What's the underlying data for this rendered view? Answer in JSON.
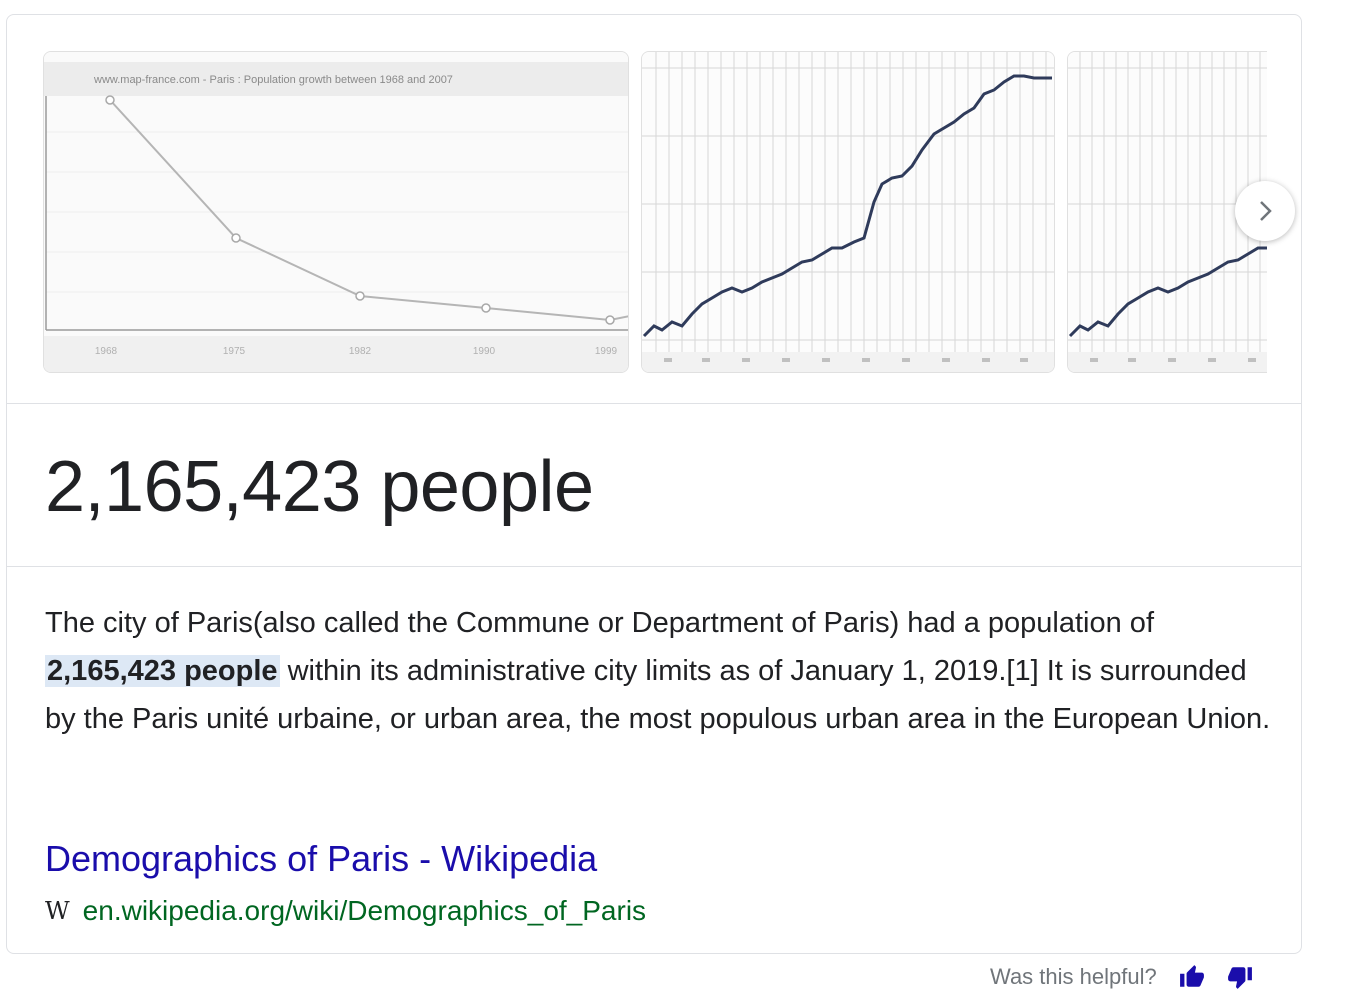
{
  "carousel": {
    "images": [
      {
        "caption": "www.map-france.com - Paris : Population growth between 1968 and 2007",
        "x_ticks": [
          "1968",
          "1975",
          "1982",
          "1990",
          "1999"
        ]
      },
      {
        "caption": ""
      },
      {
        "caption": ""
      }
    ],
    "next_icon": "chevron-right-icon"
  },
  "answer": {
    "value": "2,165,423 people"
  },
  "description": {
    "before": "The city of Paris(also called the Commune or Department of Paris) had a population of ",
    "highlight": "2,165,423 people",
    "after": " within its administrative city limits as of January 1, 2019.[1] It is surrounded by the Paris unité urbaine, or urban area, the most populous urban area in the European Union."
  },
  "source": {
    "title": "Demographics of Paris - Wikipedia",
    "icon_letter": "W",
    "url": "en.wikipedia.org/wiki/Demographics_of_Paris"
  },
  "feedback": {
    "question": "Was this helpful?",
    "thumbs_up_icon": "thumbs-up-icon",
    "thumbs_down_icon": "thumbs-down-icon"
  },
  "colors": {
    "link_title": "#1a0dab",
    "url": "#006621",
    "highlight_bg": "#dde8f5",
    "feedback_icon": "#1a0dab"
  }
}
